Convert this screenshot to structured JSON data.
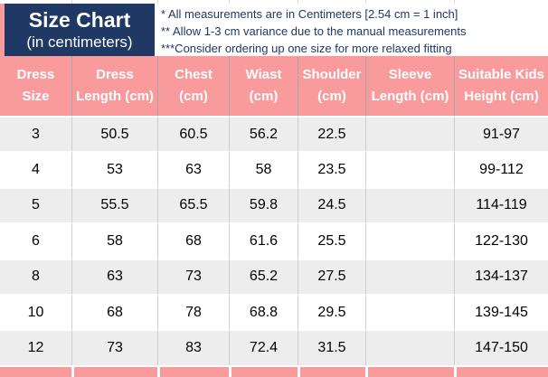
{
  "title_box": {
    "title": "Size Chart",
    "subtitle": "(in centimeters)"
  },
  "notes": [
    "* All measurements are in Centimeters [2.54 cm = 1 inch]",
    "** Allow 1-3 cm variance due to the manual measurements",
    "***Consider ordering up one size for more relaxed fitting"
  ],
  "colors": {
    "navy": "#1f3864",
    "pink": "#f99b9c",
    "row_gray": "#ededed",
    "row_white": "#ffffff",
    "gridline": "#cdcdcd"
  },
  "table": {
    "headers": [
      "Dress\nSize",
      "Dress\nLength (cm)",
      "Chest\n(cm)",
      "Wiast\n(cm)",
      "Shoulder\n(cm)",
      "Sleeve\nLength (cm)",
      "Suitable Kids\nHeight (cm)"
    ],
    "rows": [
      [
        "3",
        "50.5",
        "60.5",
        "56.2",
        "22.5",
        "",
        "91-97"
      ],
      [
        "4",
        "53",
        "63",
        "58",
        "23.5",
        "",
        "99-112"
      ],
      [
        "5",
        "55.5",
        "65.5",
        "59.8",
        "24.5",
        "",
        "114-119"
      ],
      [
        "6",
        "58",
        "68",
        "61.6",
        "25.5",
        "",
        "122-130"
      ],
      [
        "8",
        "63",
        "73",
        "65.2",
        "27.5",
        "",
        "134-137"
      ],
      [
        "10",
        "68",
        "78",
        "68.8",
        "29.5",
        "",
        "139-145"
      ],
      [
        "12",
        "73",
        "83",
        "72.4",
        "31.5",
        "",
        "147-150"
      ]
    ]
  }
}
